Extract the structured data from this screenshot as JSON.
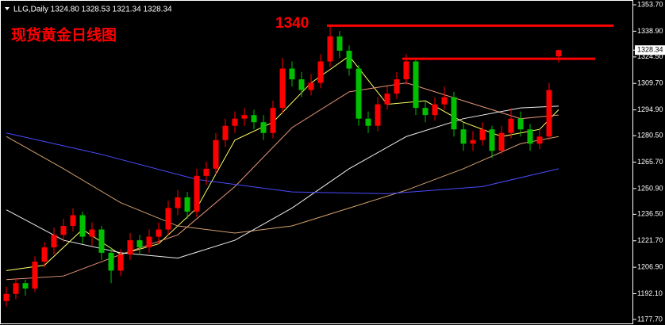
{
  "chart_data": {
    "type": "candlestick",
    "header": "LLG,Daily 1324.80 1328.53 1321.34 1328.34",
    "title": "现货黄金日线图",
    "annotation": "1340",
    "up_color": "#ff0000",
    "down_color": "#00c000",
    "ylim": [
      1177.7,
      1353.7
    ],
    "yticks": [
      {
        "value": 1353.7,
        "label": "1353.70"
      },
      {
        "value": 1338.9,
        "label": "1338.90"
      },
      {
        "value": 1324.5,
        "label": "1324.50"
      },
      {
        "value": 1309.7,
        "label": "1309.70"
      },
      {
        "value": 1294.9,
        "label": "1294.90"
      },
      {
        "value": 1280.5,
        "label": "1280.50"
      },
      {
        "value": 1265.7,
        "label": "1265.70"
      },
      {
        "value": 1250.9,
        "label": "1250.90"
      },
      {
        "value": 1236.5,
        "label": "1236.50"
      },
      {
        "value": 1221.7,
        "label": "1221.70"
      },
      {
        "value": 1206.9,
        "label": "1206.90"
      },
      {
        "value": 1192.1,
        "label": "1192.10"
      },
      {
        "value": 1177.7,
        "label": "1177.70"
      }
    ],
    "last_price": {
      "value": 1328.34,
      "label": "1328.34"
    },
    "levels": [
      1342,
      1323.5
    ],
    "ohlc": [
      [
        1188,
        1196,
        1185,
        1192
      ],
      [
        1192,
        1201,
        1189,
        1198
      ],
      [
        1198,
        1200,
        1191,
        1195
      ],
      [
        1195,
        1213,
        1193,
        1210
      ],
      [
        1210,
        1221,
        1207,
        1218
      ],
      [
        1218,
        1229,
        1214,
        1225
      ],
      [
        1225,
        1234,
        1221,
        1230
      ],
      [
        1230,
        1240,
        1227,
        1236
      ],
      [
        1236,
        1238,
        1220,
        1224
      ],
      [
        1224,
        1232,
        1219,
        1228
      ],
      [
        1228,
        1230,
        1211,
        1215
      ],
      [
        1215,
        1218,
        1198,
        1205
      ],
      [
        1205,
        1217,
        1202,
        1214
      ],
      [
        1214,
        1226,
        1211,
        1222
      ],
      [
        1222,
        1225,
        1214,
        1218
      ],
      [
        1218,
        1228,
        1215,
        1224
      ],
      [
        1224,
        1232,
        1220,
        1228
      ],
      [
        1228,
        1244,
        1225,
        1240
      ],
      [
        1240,
        1250,
        1236,
        1246
      ],
      [
        1246,
        1249,
        1234,
        1238
      ],
      [
        1238,
        1262,
        1235,
        1258
      ],
      [
        1258,
        1266,
        1253,
        1262
      ],
      [
        1262,
        1282,
        1259,
        1278
      ],
      [
        1278,
        1290,
        1274,
        1286
      ],
      [
        1286,
        1294,
        1282,
        1290
      ],
      [
        1290,
        1296,
        1286,
        1292
      ],
      [
        1292,
        1295,
        1284,
        1288
      ],
      [
        1288,
        1292,
        1278,
        1282
      ],
      [
        1282,
        1300,
        1279,
        1296
      ],
      [
        1296,
        1324,
        1293,
        1318
      ],
      [
        1318,
        1322,
        1308,
        1312
      ],
      [
        1312,
        1316,
        1302,
        1306
      ],
      [
        1306,
        1315,
        1303,
        1310
      ],
      [
        1310,
        1326,
        1307,
        1322
      ],
      [
        1322,
        1342,
        1319,
        1336
      ],
      [
        1336,
        1339,
        1324,
        1328
      ],
      [
        1328,
        1331,
        1314,
        1318
      ],
      [
        1318,
        1320,
        1286,
        1290
      ],
      [
        1290,
        1294,
        1282,
        1286
      ],
      [
        1286,
        1302,
        1283,
        1298
      ],
      [
        1298,
        1308,
        1295,
        1304
      ],
      [
        1304,
        1316,
        1301,
        1312
      ],
      [
        1312,
        1326,
        1309,
        1322
      ],
      [
        1322,
        1324,
        1292,
        1296
      ],
      [
        1296,
        1300,
        1288,
        1292
      ],
      [
        1292,
        1302,
        1289,
        1298
      ],
      [
        1298,
        1308,
        1295,
        1302
      ],
      [
        1302,
        1305,
        1280,
        1284
      ],
      [
        1284,
        1288,
        1272,
        1276
      ],
      [
        1276,
        1283,
        1272,
        1278
      ],
      [
        1278,
        1288,
        1275,
        1284
      ],
      [
        1284,
        1286,
        1268,
        1272
      ],
      [
        1272,
        1286,
        1270,
        1282
      ],
      [
        1282,
        1296,
        1279,
        1290
      ],
      [
        1290,
        1294,
        1280,
        1284
      ],
      [
        1284,
        1287,
        1272,
        1276
      ],
      [
        1276,
        1284,
        1273,
        1280
      ],
      [
        1280,
        1310,
        1278,
        1306
      ],
      [
        1324.8,
        1328.53,
        1321.34,
        1328.34
      ]
    ],
    "lines": [
      {
        "color": "#ffff66",
        "x": [
          0,
          4,
          8,
          12,
          16,
          20,
          24,
          28,
          32,
          36,
          40,
          44,
          48,
          52,
          56,
          58
        ],
        "values": [
          1205,
          1208,
          1228,
          1214,
          1220,
          1240,
          1278,
          1288,
          1310,
          1325,
          1298,
          1300,
          1288,
          1280,
          1284,
          1295
        ]
      },
      {
        "color": "#e9967a",
        "x": [
          0,
          6,
          12,
          18,
          24,
          30,
          36,
          42,
          48,
          54,
          58
        ],
        "values": [
          1200,
          1202,
          1214,
          1225,
          1252,
          1285,
          1305,
          1310,
          1300,
          1290,
          1292
        ]
      },
      {
        "color": "#d2a06e",
        "x": [
          0,
          6,
          12,
          18,
          24,
          30,
          36,
          42,
          48,
          54,
          58
        ],
        "values": [
          1280,
          1262,
          1243,
          1230,
          1226,
          1230,
          1240,
          1250,
          1262,
          1276,
          1280
        ]
      },
      {
        "color": "#f0f0f0",
        "x": [
          0,
          6,
          12,
          18,
          24,
          30,
          36,
          42,
          48,
          54,
          58
        ],
        "values": [
          1239,
          1222,
          1215,
          1212,
          1222,
          1240,
          1262,
          1280,
          1290,
          1296,
          1297
        ]
      },
      {
        "color": "#4a4aff",
        "x": [
          0,
          10,
          20,
          30,
          40,
          50,
          58
        ],
        "values": [
          1282,
          1270,
          1256,
          1249,
          1248,
          1252,
          1262
        ]
      }
    ]
  }
}
